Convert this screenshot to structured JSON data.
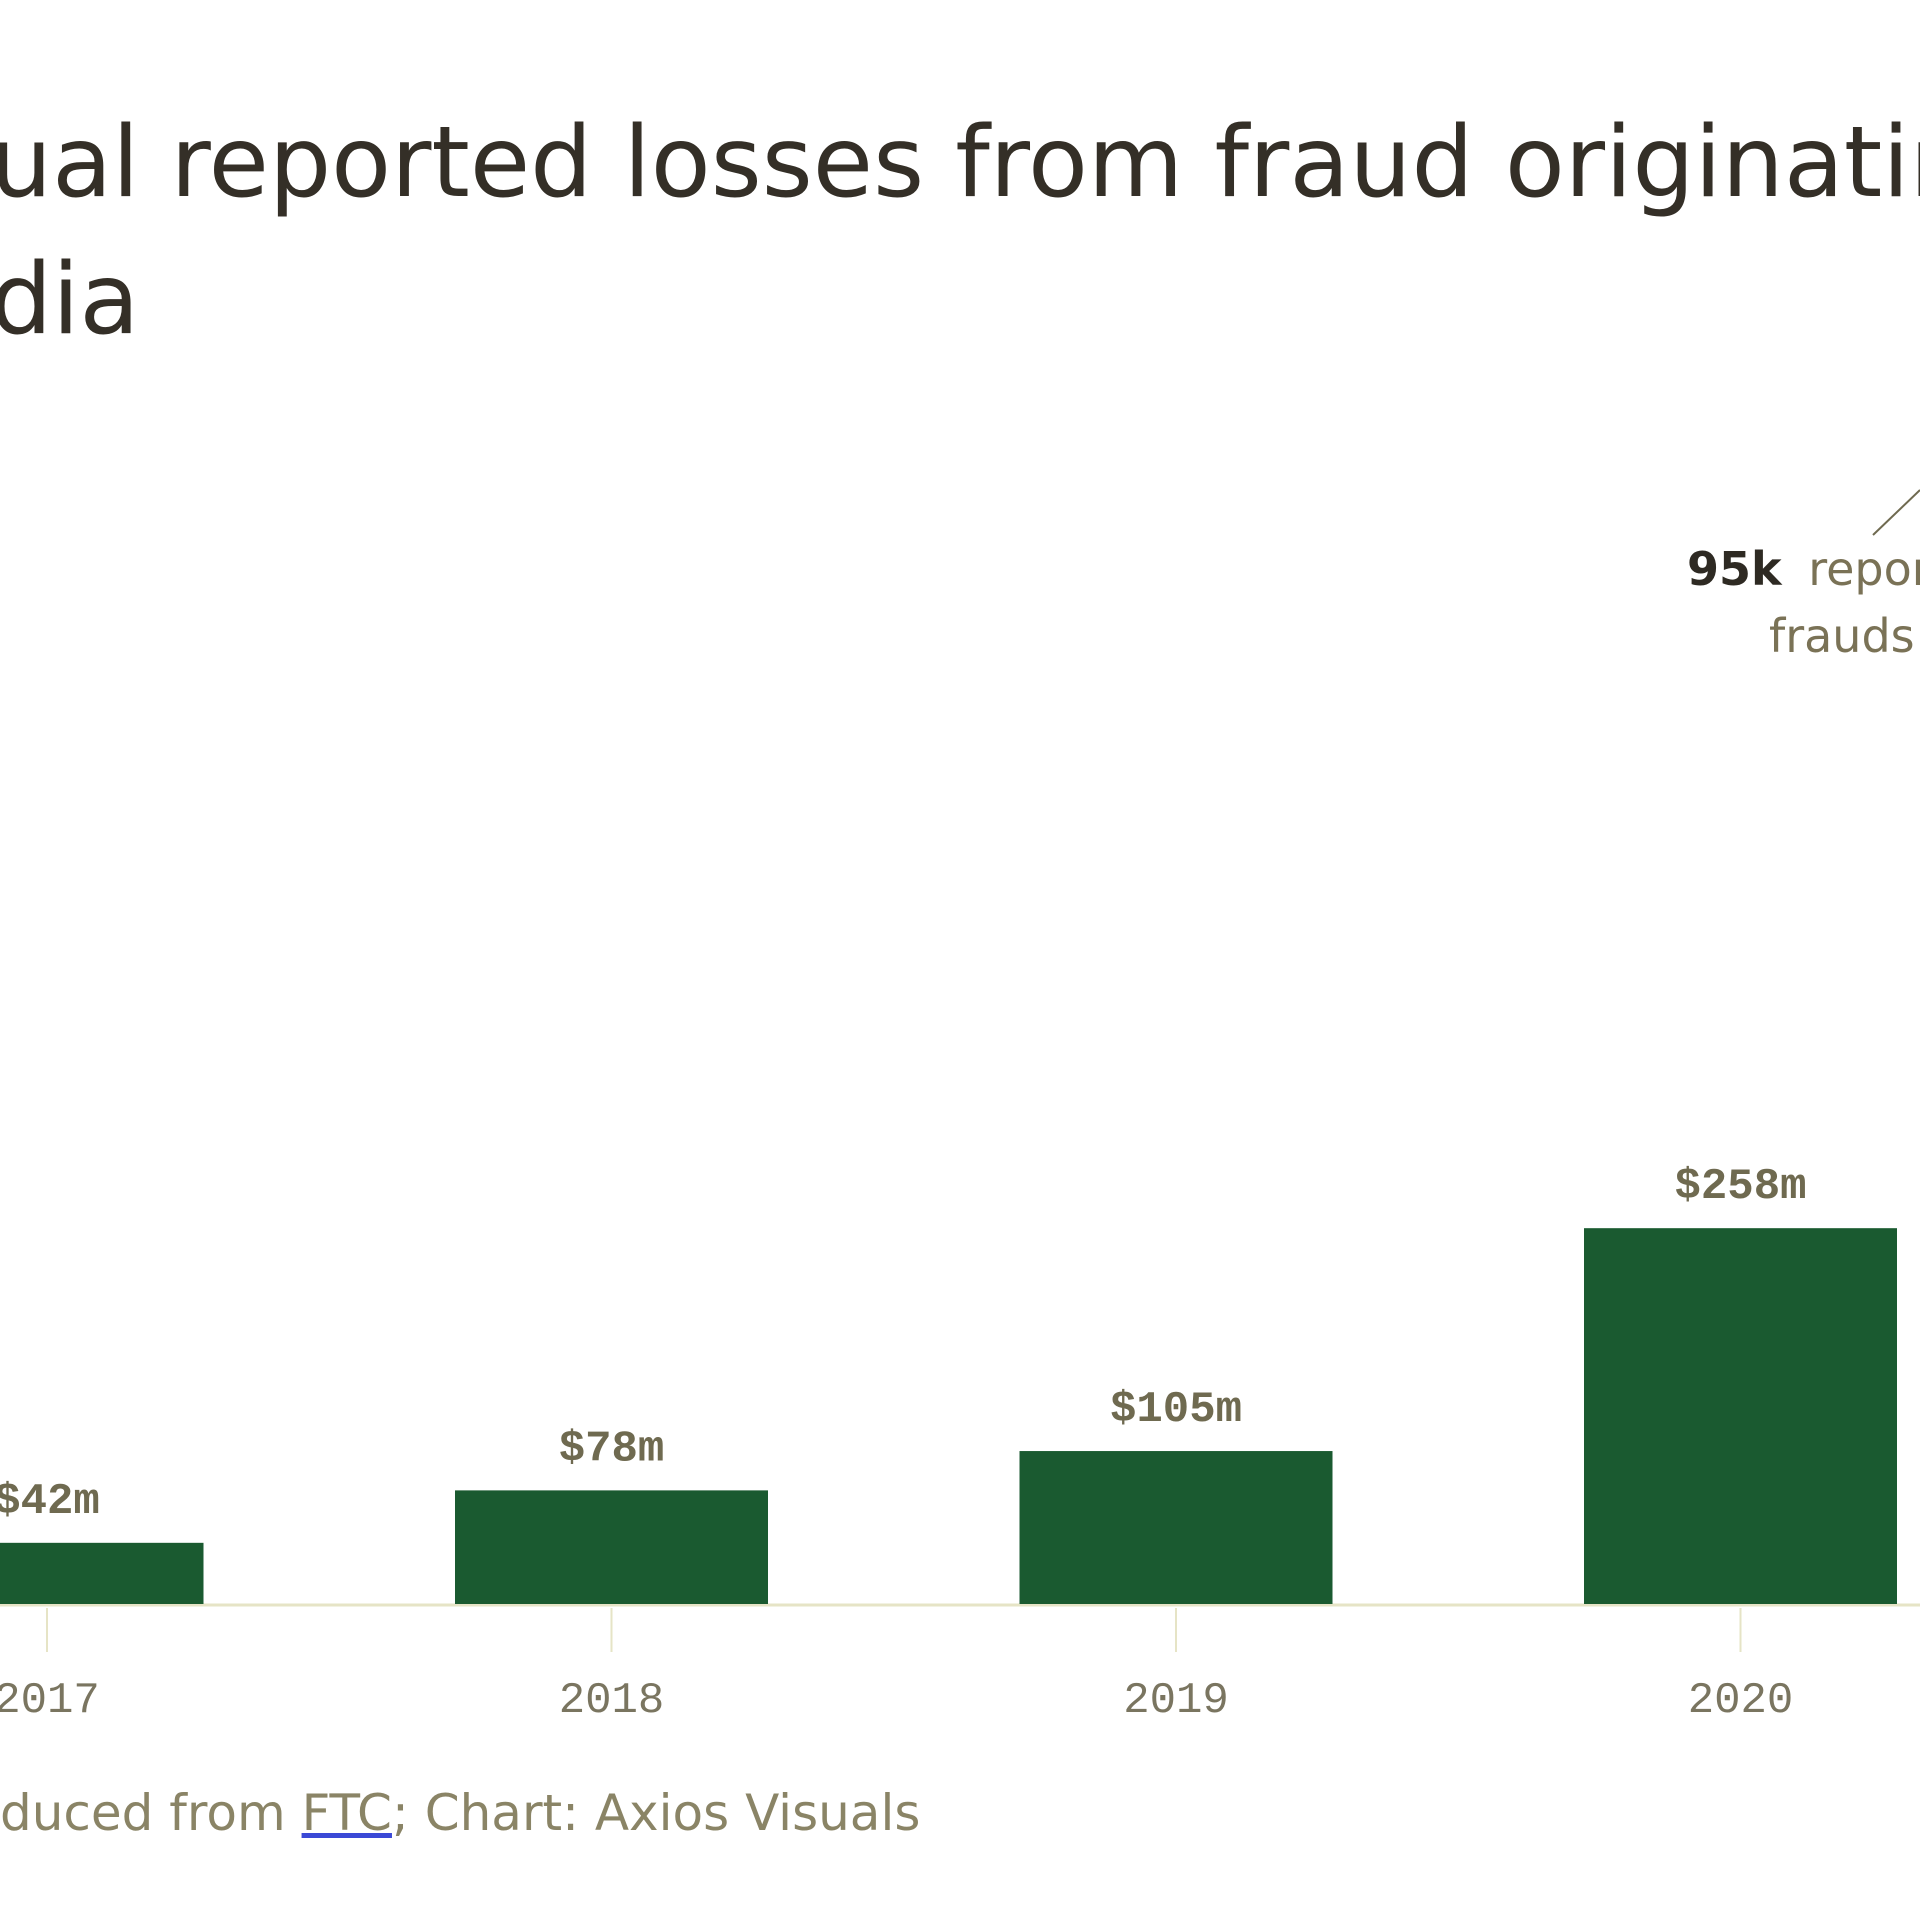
{
  "chart_data": {
    "type": "bar",
    "title": [
      "ual reported losses from fraud originatin",
      "dia"
    ],
    "categories": [
      "2017",
      "2018",
      "2019",
      "2020"
    ],
    "values": [
      42,
      78,
      105,
      258
    ],
    "value_labels": [
      "$42m",
      "$78m",
      "$105m",
      "$258m"
    ],
    "color": "#1a5a30",
    "ylim": [
      0,
      300
    ],
    "annotation": {
      "bold": "95k",
      "lines": [
        "repor",
        "frauds"
      ]
    },
    "source": [
      "duced from ",
      "FTC",
      "; Chart: Axios Visuals"
    ]
  }
}
